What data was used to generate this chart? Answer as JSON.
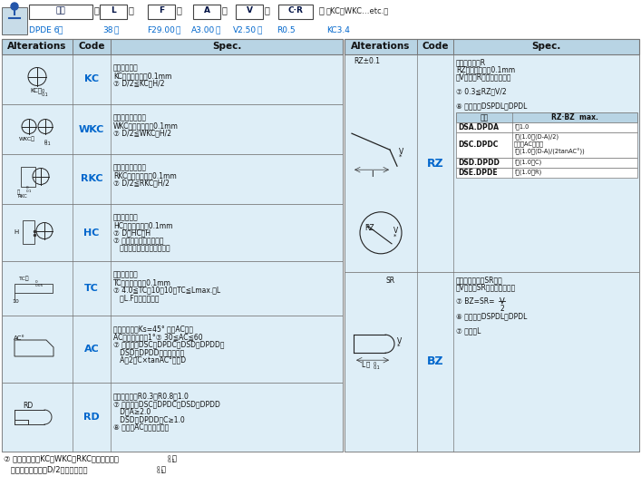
{
  "bg_color": "#deeef7",
  "header_bg": "#b8d4e4",
  "white_bg": "#ffffff",
  "blue_text": "#0066cc",
  "dark_text": "#111111",
  "table_border": "#777777",
  "fig_bg": "#ffffff",
  "top_boxes": [
    "型号",
    "L",
    "F",
    "A",
    "V",
    "C·R"
  ],
  "top_example": [
    "DPDE 6",
    "38",
    "F29.00",
    "A3.00",
    "V2.50",
    "R0.5"
  ],
  "top_suffix": "(KC·WKC…etc.)",
  "top_suffix_ex": "KC3.4",
  "left_rows": [
    {
      "code": "KC",
      "spec_lines": [
        "加工単止転面",
        "KC寸法指定単位0.1mm",
        "⑦ D/2≦KC＜H/2"
      ]
    },
    {
      "code": "WKC",
      "spec_lines": [
        "加工平行双止転面",
        "WKC寸法指定単位0.1mm",
        "⑦ D/2≦WKC＜H/2"
      ]
    },
    {
      "code": "RKC",
      "spec_lines": [
        "加工直角双止転面",
        "RKC寸法指定単位0.1mm",
        "⑦ D/2≦RKC＜H/2"
      ]
    },
    {
      "code": "HC",
      "spec_lines": [
        "変更肩部直径",
        "HC寸法指定単位0.1mm",
        "⑦ D＜HC＜H",
        "⑦ 肩部直径因公差关系，",
        "   有时会加工为无肩型直杆。"
      ]
    },
    {
      "code": "TC",
      "spec_lines": [
        "変更肩部厚度",
        "TC寸法指定単位0.1mm",
        "⑦ 4.0≦TC＜10且10－TC≦Lmax.－L",
        "   （L.F为指定尺寸）"
      ]
    },
    {
      "code": "AC",
      "spec_lines": [
        "変更標準規格Ks=45° 指定AC角度",
        "AC角度指定単位1°⑦ 30≦AC≦60",
        "⑦ 仅适用于DSC、DPDC、DSD、DPDD、",
        "   DSD、DPDD时的加工极限",
        "   A＋2（C×tanAC°）＜D"
      ]
    },
    {
      "code": "RD",
      "spec_lines": [
        "変更標準規格R0.3为R0.8～1.0",
        "⑦ 仅适用于DSC、DPDC、DSD、DPDD",
        "   D－A≥2.0",
        "   DSD、DPDD时C≥1.0",
        "⑧ 不可与AC代码同时使用"
      ]
    }
  ],
  "rz_spec_lines": [
    "加工前端圆弧R",
    "RZ寸法指定単位0.1mm",
    "＊V寸法为R加工前的尺寸。",
    "",
    "⑦ 0.3≦RZ＜V/2",
    "",
    "⑧ 不适用于DSPDL、DPDL"
  ],
  "rz_table_hdr": [
    "型号",
    "RZ·BZ  max."
  ],
  "rz_table_rows": [
    [
      "DSA.DPDA",
      "l－1.0"
    ],
    [
      "DSC.DPDC",
      "l－(1.0＋(D-A)/2)\n＊使用AC代码时\nl－(1.0＋(D-A)/(2tanAC°))"
    ],
    [
      "DSD.DPDD",
      "l－(1.0＋C)"
    ],
    [
      "DSE.DPDE",
      "l－(1.0＋R)"
    ]
  ],
  "bz_spec_lines": [
    "加工前端球面（SR）。",
    "＊V寸法为SR加工前的尺寸。",
    "",
    "⑦ BZ=SR= V/2",
    "",
    "⑧ 不适用于DSPDL、DPDL",
    "",
    "⑦ 公差为L"
  ],
  "footer1": "⑦ 止転面加工（KC、WKC、RKC）の公差を－",
  "footer2": "   配合軸径寸法指定D/2時、公差も－"
}
